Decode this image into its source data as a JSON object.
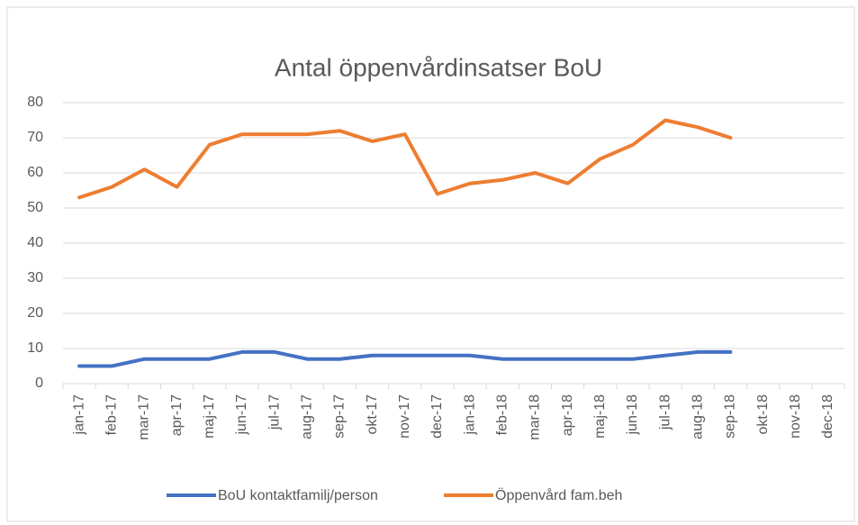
{
  "chart_data": {
    "type": "line",
    "title": "Antal öppenvårdinsatser BoU",
    "categories": [
      "jan-17",
      "feb-17",
      "mar-17",
      "apr-17",
      "maj-17",
      "jun-17",
      "jul-17",
      "aug-17",
      "sep-17",
      "okt-17",
      "nov-17",
      "dec-17",
      "jan-18",
      "feb-18",
      "mar-18",
      "apr-18",
      "maj-18",
      "jun-18",
      "jul-18",
      "aug-18",
      "sep-18",
      "okt-18",
      "nov-18",
      "dec-18"
    ],
    "series": [
      {
        "name": "BoU kontaktfamilj/person",
        "color": "#4472c4",
        "values": [
          5,
          5,
          7,
          7,
          7,
          9,
          9,
          7,
          7,
          8,
          8,
          8,
          8,
          7,
          7,
          7,
          7,
          7,
          8,
          9,
          9,
          null,
          null,
          null
        ]
      },
      {
        "name": "Öppenvård fam.beh",
        "color": "#ed7d31",
        "values": [
          53,
          56,
          61,
          56,
          68,
          71,
          71,
          71,
          72,
          69,
          71,
          54,
          57,
          58,
          60,
          57,
          64,
          68,
          75,
          73,
          70,
          null,
          null,
          null
        ]
      }
    ],
    "ylim": [
      0,
      80
    ],
    "yticks": [
      0,
      10,
      20,
      30,
      40,
      50,
      60,
      70,
      80
    ],
    "grid": true,
    "legend": "bottom"
  }
}
